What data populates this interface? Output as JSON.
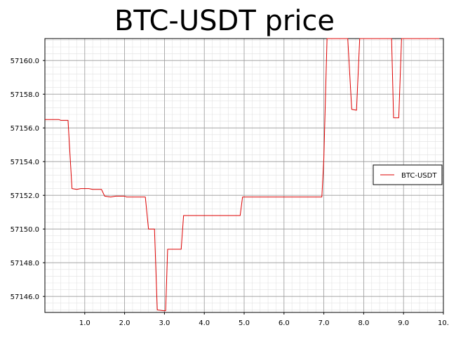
{
  "chart_data": {
    "type": "line",
    "title": "BTC-USDT price",
    "xlabel": "",
    "ylabel": "",
    "xlim": [
      0,
      10
    ],
    "ylim": [
      57145.05,
      57161.3
    ],
    "x_ticks": [
      1,
      2,
      3,
      4,
      5,
      6,
      7,
      8,
      9,
      10
    ],
    "x_tick_labels": [
      "1.0",
      "2.0",
      "3.0",
      "4.0",
      "5.0",
      "6.0",
      "7.0",
      "8.0",
      "9.0",
      "10."
    ],
    "y_ticks": [
      57146,
      57148,
      57150,
      57152,
      57154,
      57156,
      57158,
      57160
    ],
    "y_tick_labels": [
      "57146.0",
      "57148.0",
      "57150.0",
      "57152.0",
      "57154.0",
      "57156.0",
      "57158.0",
      "57160.0"
    ],
    "grid": true,
    "legend_position": "center-right",
    "series": [
      {
        "name": "BTC-USDT",
        "color": "#dd0000",
        "points": [
          [
            0.0,
            57156.5
          ],
          [
            0.35,
            57156.5
          ],
          [
            0.4,
            57156.45
          ],
          [
            0.58,
            57156.45
          ],
          [
            0.68,
            57152.4
          ],
          [
            0.8,
            57152.35
          ],
          [
            0.9,
            57152.4
          ],
          [
            1.1,
            57152.4
          ],
          [
            1.2,
            57152.35
          ],
          [
            1.42,
            57152.35
          ],
          [
            1.5,
            57151.95
          ],
          [
            1.65,
            57151.9
          ],
          [
            1.78,
            57151.95
          ],
          [
            2.0,
            57151.95
          ],
          [
            2.05,
            57151.9
          ],
          [
            2.52,
            57151.9
          ],
          [
            2.6,
            57150.0
          ],
          [
            2.75,
            57150.0
          ],
          [
            2.82,
            57145.2
          ],
          [
            2.98,
            57145.15
          ],
          [
            3.03,
            57145.15
          ],
          [
            3.08,
            57148.8
          ],
          [
            3.42,
            57148.8
          ],
          [
            3.48,
            57150.8
          ],
          [
            4.9,
            57150.8
          ],
          [
            4.96,
            57151.9
          ],
          [
            6.95,
            57151.9
          ],
          [
            7.0,
            57154.2
          ],
          [
            7.08,
            57161.3
          ],
          [
            7.6,
            57161.3
          ],
          [
            7.7,
            57157.1
          ],
          [
            7.82,
            57157.05
          ],
          [
            7.9,
            57161.3
          ],
          [
            8.7,
            57161.3
          ],
          [
            8.75,
            57156.6
          ],
          [
            8.88,
            57156.6
          ],
          [
            8.95,
            57161.3
          ],
          [
            9.9,
            57161.3
          ]
        ]
      }
    ]
  }
}
